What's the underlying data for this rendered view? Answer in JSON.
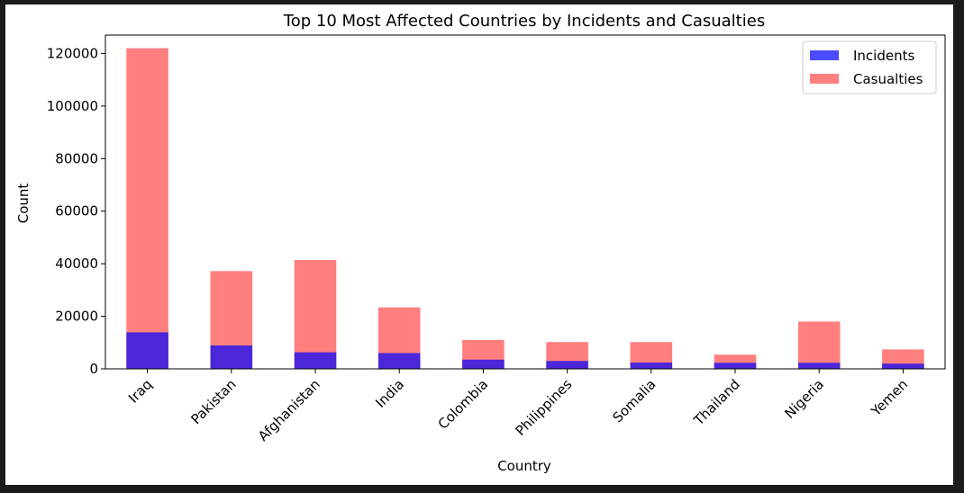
{
  "chart_data": {
    "type": "bar",
    "title": "Top 10 Most Affected Countries by Incidents and Casualties",
    "xlabel": "Country",
    "ylabel": "Count",
    "ylim": [
      0,
      127000
    ],
    "yticks": [
      0,
      20000,
      40000,
      60000,
      80000,
      100000,
      120000
    ],
    "ytick_labels": [
      "0",
      "20000",
      "40000",
      "60000",
      "80000",
      "100000",
      "120000"
    ],
    "categories": [
      "Iraq",
      "Pakistan",
      "Afghanistan",
      "India",
      "Colombia",
      "Philippines",
      "Somalia",
      "Thailand",
      "Nigeria",
      "Yemen"
    ],
    "series": [
      {
        "name": "Incidents",
        "color": "#0000ff",
        "opacity": 0.7,
        "values": [
          13900,
          8900,
          6300,
          6000,
          3500,
          3000,
          2400,
          2300,
          2300,
          2000
        ]
      },
      {
        "name": "Casualties",
        "color": "#ff0000",
        "opacity": 0.5,
        "values": [
          122000,
          37200,
          41400,
          23400,
          11000,
          10200,
          10200,
          5400,
          18000,
          7400
        ]
      }
    ],
    "legend": "top-right",
    "grid": false
  }
}
